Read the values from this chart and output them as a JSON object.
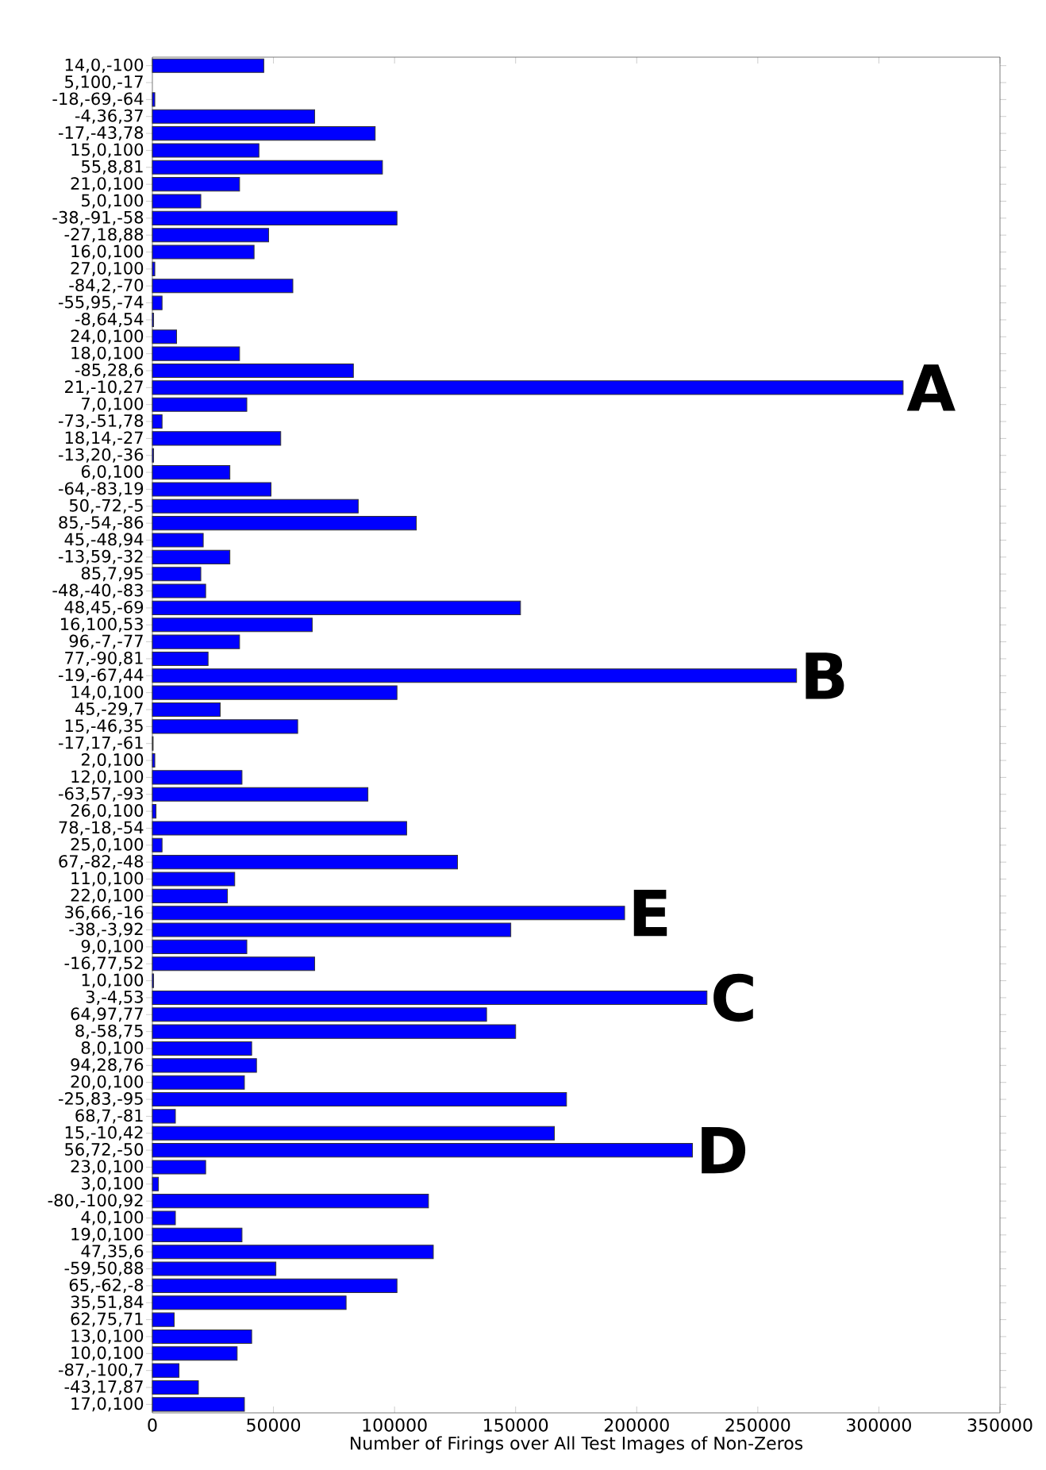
{
  "chart_data": {
    "type": "bar",
    "orientation": "horizontal",
    "xlabel": "Number of Firings over All Test Images of Non-Zeros",
    "categories": [
      "14,0,-100",
      "5,100,-17",
      "-18,-69,-64",
      "-4,36,37",
      "-17,-43,78",
      "15,0,100",
      "55,8,81",
      "21,0,100",
      "5,0,100",
      "-38,-91,-58",
      "-27,18,88",
      "16,0,100",
      "27,0,100",
      "-84,2,-70",
      "-55,95,-74",
      "-8,64,54",
      "24,0,100",
      "18,0,100",
      "-85,28,6",
      "21,-10,27",
      "7,0,100",
      "-73,-51,78",
      "18,14,-27",
      "-13,20,-36",
      "6,0,100",
      "-64,-83,19",
      "50,-72,-5",
      "85,-54,-86",
      "45,-48,94",
      "-13,59,-32",
      "85,7,95",
      "-48,-40,-83",
      "48,45,-69",
      "16,100,53",
      "96,-7,-77",
      "77,-90,81",
      "-19,-67,44",
      "14,0,100",
      "45,-29,7",
      "15,-46,35",
      "-17,17,-61",
      "2,0,100",
      "12,0,100",
      "-63,57,-93",
      "26,0,100",
      "78,-18,-54",
      "25,0,100",
      "67,-82,-48",
      "11,0,100",
      "22,0,100",
      "36,66,-16",
      "-38,-3,92",
      "9,0,100",
      "-16,77,52",
      "1,0,100",
      "3,-4,53",
      "64,97,77",
      "8,-58,75",
      "8,0,100",
      "94,28,76",
      "20,0,100",
      "-25,83,-95",
      "68,7,-81",
      "15,-10,42",
      "56,72,-50",
      "23,0,100",
      "3,0,100",
      "-80,-100,92",
      "4,0,100",
      "19,0,100",
      "47,35,6",
      "-59,50,88",
      "65,-62,-8",
      "35,51,84",
      "62,75,71",
      "13,0,100",
      "10,0,100",
      "-87,-100,7",
      "-43,17,87",
      "17,0,100"
    ],
    "values": [
      46000,
      null,
      1000,
      67000,
      92000,
      44000,
      95000,
      36000,
      20000,
      101000,
      48000,
      42000,
      1000,
      58000,
      4000,
      500,
      10000,
      36000,
      83000,
      310000,
      39000,
      4000,
      53000,
      500,
      32000,
      49000,
      85000,
      109000,
      21000,
      32000,
      20000,
      22000,
      152000,
      66000,
      36000,
      23000,
      266000,
      101000,
      28000,
      60000,
      300,
      1000,
      37000,
      89000,
      1500,
      105000,
      4000,
      126000,
      34000,
      31000,
      195000,
      148000,
      39000,
      67000,
      500,
      229000,
      138000,
      150000,
      41000,
      43000,
      38000,
      171000,
      9500,
      166000,
      223000,
      22000,
      2500,
      114000,
      9500,
      37000,
      116000,
      51000,
      101000,
      80000,
      9000,
      41000,
      35000,
      11000,
      19000,
      38000
    ],
    "color": "#0000ff",
    "xlim": [
      0,
      350000
    ],
    "xticks": [
      0,
      50000,
      100000,
      150000,
      200000,
      250000,
      300000,
      350000
    ],
    "grid": false,
    "annotations": [
      {
        "text": "A",
        "x": 310000,
        "y": "21,-10,27"
      },
      {
        "text": "B",
        "x": 266000,
        "y": "-19,-67,44"
      },
      {
        "text": "E",
        "x": 195000,
        "y": "36,66,-16"
      },
      {
        "text": "C",
        "x": 229000,
        "y": "3,-4,53"
      },
      {
        "text": "D",
        "x": 223000,
        "y": "56,72,-50"
      }
    ]
  }
}
